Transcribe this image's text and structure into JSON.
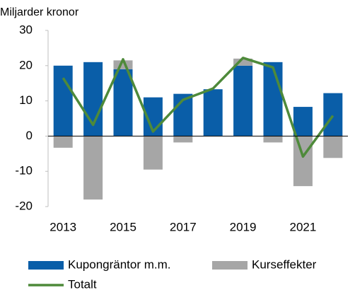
{
  "chart_data": {
    "type": "bar",
    "stacked": true,
    "y_label": "Miljarder kronor",
    "categories": [
      "2013",
      null,
      "2015",
      null,
      "2017",
      null,
      "2019",
      null,
      "2021",
      null
    ],
    "series": [
      {
        "name": "Kupongräntor m.m.",
        "type": "bar",
        "color": "#0a5ea8",
        "values": [
          20,
          21,
          19,
          11,
          12,
          13.3,
          20,
          21,
          8.3,
          12.2
        ]
      },
      {
        "name": "Kurseffekter",
        "type": "bar",
        "color": "#a6a6a6",
        "values": [
          -3.3,
          -18,
          2.5,
          -9.5,
          -1.8,
          0,
          2,
          -1.8,
          -14.2,
          -6.2
        ]
      },
      {
        "name": "Totalt",
        "type": "line",
        "color": "#4e8a3a",
        "values": [
          16.5,
          3.2,
          21.8,
          1.3,
          10.3,
          13.5,
          22.2,
          19.5,
          -5.8,
          5.8
        ]
      }
    ],
    "ylim": [
      -20,
      30
    ],
    "yticks": [
      -20,
      -10,
      0,
      10,
      20,
      30
    ],
    "grid": false
  }
}
